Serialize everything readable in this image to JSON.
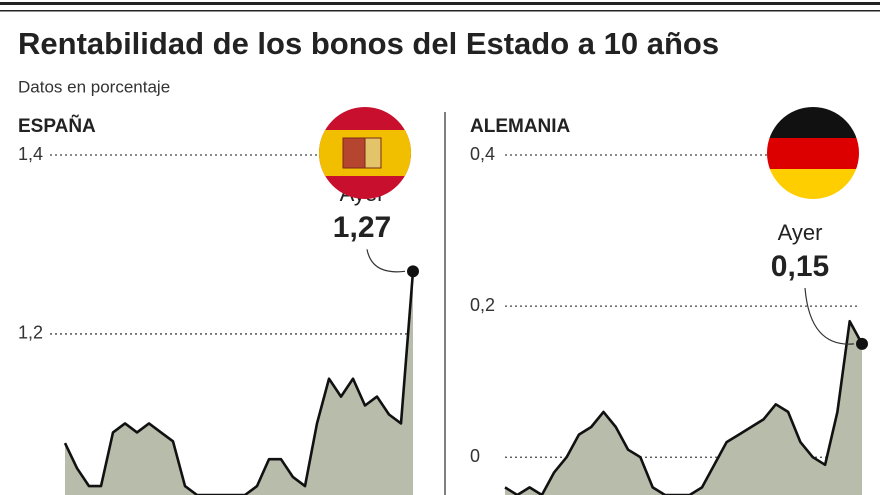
{
  "title": "Rentabilidad de los bonos del Estado a 10 años",
  "subtitle": "Datos en porcentaje",
  "chart_data": [
    {
      "type": "area",
      "title": "ESPAÑA",
      "color": "#b8bcaa",
      "line_color": "#111111",
      "values": [
        1.078,
        1.05,
        1.03,
        1.03,
        1.09,
        1.1,
        1.09,
        1.1,
        1.09,
        1.08,
        1.03,
        1.02,
        1.02,
        1.02,
        1.02,
        1.02,
        1.03,
        1.06,
        1.06,
        1.04,
        1.03,
        1.1,
        1.15,
        1.13,
        1.15,
        1.12,
        1.13,
        1.11,
        1.1,
        1.27
      ],
      "ylim": [
        1.02,
        1.4
      ],
      "yticks": [
        {
          "value": 1.4,
          "label": "1,4"
        },
        {
          "value": 1.2,
          "label": "1,2"
        }
      ],
      "grid": true,
      "annotation": "Ayer",
      "last_label": "1,27"
    },
    {
      "type": "area",
      "title": "ALEMANIA",
      "color": "#b8bcaa",
      "line_color": "#111111",
      "values": [
        -0.04,
        -0.05,
        -0.04,
        -0.05,
        -0.02,
        0.0,
        0.03,
        0.04,
        0.06,
        0.04,
        0.01,
        0.0,
        -0.04,
        -0.05,
        -0.05,
        -0.05,
        -0.04,
        -0.01,
        0.02,
        0.03,
        0.04,
        0.05,
        0.07,
        0.06,
        0.02,
        0.0,
        -0.01,
        0.06,
        0.18,
        0.15
      ],
      "ylim": [
        -0.05,
        0.4
      ],
      "yticks": [
        {
          "value": 0.4,
          "label": "0,4"
        },
        {
          "value": 0.2,
          "label": "0,2"
        },
        0
      ],
      "grid": true,
      "annotation": "Ayer",
      "last_label": "0,15"
    }
  ]
}
